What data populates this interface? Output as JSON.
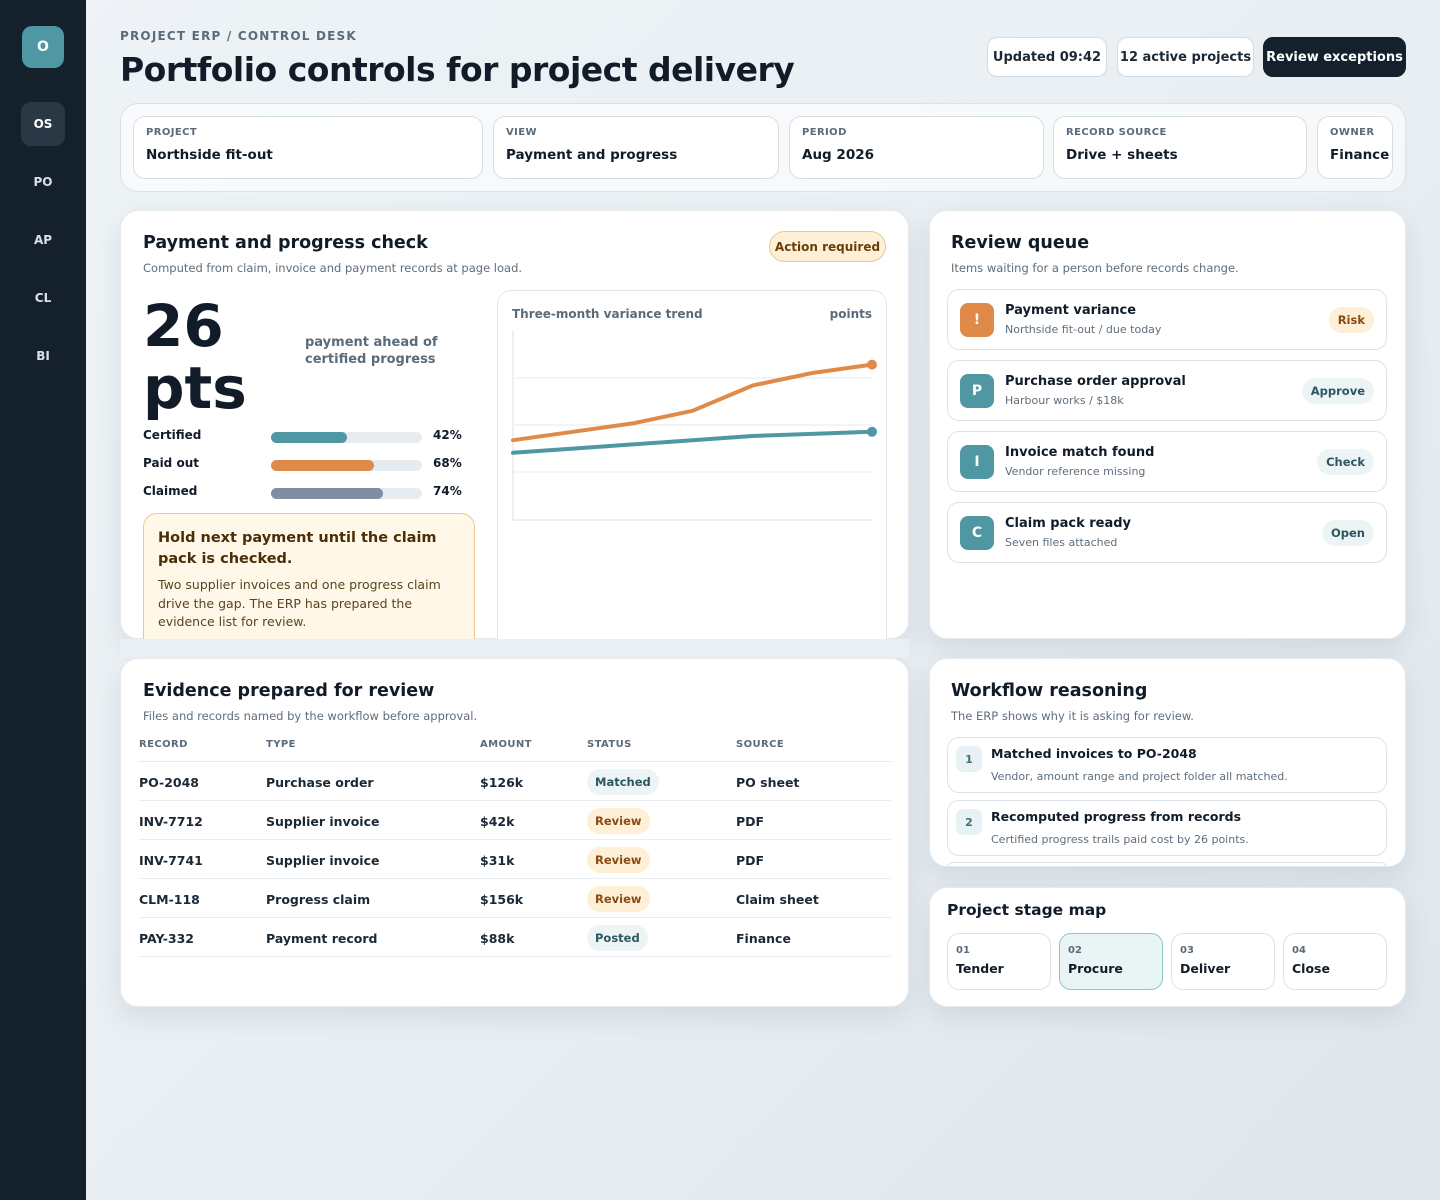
{
  "sidebar": {
    "logo": "O",
    "items": [
      {
        "label": "OS"
      },
      {
        "label": "PO"
      },
      {
        "label": "AP"
      },
      {
        "label": "CL"
      },
      {
        "label": "BI"
      }
    ]
  },
  "header": {
    "eyebrow": "PROJECT ERP / CONTROL DESK",
    "title": "Portfolio controls for project delivery",
    "updated": "Updated 09:42",
    "active_projects": "12 active projects",
    "review_button": "Review exceptions"
  },
  "filters": [
    {
      "label": "PROJECT",
      "value": "Northside fit-out"
    },
    {
      "label": "VIEW",
      "value": "Payment and progress"
    },
    {
      "label": "PERIOD",
      "value": "Aug 2026"
    },
    {
      "label": "RECORD SOURCE",
      "value": "Drive + sheets"
    },
    {
      "label": "OWNER",
      "value": "Finance"
    }
  ],
  "payment_check": {
    "title": "Payment and progress check",
    "subtitle": "Computed from claim, invoice and payment records at page load.",
    "badge": "Action required",
    "metric_value": "26",
    "metric_unit": "pts",
    "metric_caption": "payment ahead of certified progress",
    "bars": [
      {
        "label": "Certified",
        "value": 42,
        "display": "42%",
        "color": "#4f97a3"
      },
      {
        "label": "Paid out",
        "value": 68,
        "display": "68%",
        "color": "#e08a49"
      },
      {
        "label": "Claimed",
        "value": 74,
        "display": "74%",
        "color": "#7f8ea2"
      }
    ],
    "alert_title": "Hold next payment until the claim pack is checked.",
    "alert_body": "Two supplier invoices and one progress claim drive the gap. The ERP has prepared the evidence list for review."
  },
  "chart_data": {
    "type": "line",
    "title": "Three-month variance trend",
    "ylabel": "points",
    "grid": true,
    "series": [
      {
        "color": "#e08a49",
        "values": [
          19,
          21,
          23,
          26,
          32,
          35,
          37
        ]
      },
      {
        "color": "#4f97a3",
        "values": [
          16,
          17,
          18,
          19,
          20,
          20.5,
          21
        ]
      }
    ],
    "ylim": [
      0,
      45
    ]
  },
  "review_queue": {
    "title": "Review queue",
    "subtitle": "Items waiting for a person before records change.",
    "items": [
      {
        "icon": "!",
        "icon_color": "#e08a49",
        "title": "Payment variance",
        "sub": "Northside fit-out / due today",
        "badge": "Risk",
        "badge_bg": "#fdf0d6",
        "badge_color": "#8a4a12"
      },
      {
        "icon": "P",
        "icon_color": "#4f97a3",
        "title": "Purchase order approval",
        "sub": "Harbour works / $18k",
        "badge": "Approve",
        "badge_bg": "#edf4f5",
        "badge_color": "#2b5761"
      },
      {
        "icon": "I",
        "icon_color": "#4f97a3",
        "title": "Invoice match found",
        "sub": "Vendor reference missing",
        "badge": "Check",
        "badge_bg": "#edf4f5",
        "badge_color": "#2b5761"
      },
      {
        "icon": "C",
        "icon_color": "#4f97a3",
        "title": "Claim pack ready",
        "sub": "Seven files attached",
        "badge": "Open",
        "badge_bg": "#edf4f5",
        "badge_color": "#2b5761"
      }
    ]
  },
  "evidence": {
    "title": "Evidence prepared for review",
    "subtitle": "Files and records named by the workflow before approval.",
    "columns": [
      "RECORD",
      "TYPE",
      "AMOUNT",
      "STATUS",
      "SOURCE"
    ],
    "rows": [
      {
        "record": "PO-2048",
        "type": "Purchase order",
        "amount": "$126k",
        "status": "Matched",
        "source": "PO sheet"
      },
      {
        "record": "INV-7712",
        "type": "Supplier invoice",
        "amount": "$42k",
        "status": "Review",
        "source": "PDF"
      },
      {
        "record": "INV-7741",
        "type": "Supplier invoice",
        "amount": "$31k",
        "status": "Review",
        "source": "PDF"
      },
      {
        "record": "CLM-118",
        "type": "Progress claim",
        "amount": "$156k",
        "status": "Review",
        "source": "Claim sheet"
      },
      {
        "record": "PAY-332",
        "type": "Payment record",
        "amount": "$88k",
        "status": "Posted",
        "source": "Finance"
      }
    ]
  },
  "workflow": {
    "title": "Workflow reasoning",
    "subtitle": "The ERP shows why it is asking for review.",
    "steps": [
      {
        "num": "1",
        "title": "Matched invoices to PO-2048",
        "sub": "Vendor, amount range and project folder all matched."
      },
      {
        "num": "2",
        "title": "Recomputed progress from records",
        "sub": "Certified progress trails paid cost by 26 points."
      }
    ]
  },
  "stage_map": {
    "title": "Project stage map",
    "stages": [
      {
        "num": "01",
        "name": "Tender"
      },
      {
        "num": "02",
        "name": "Procure"
      },
      {
        "num": "03",
        "name": "Deliver"
      },
      {
        "num": "04",
        "name": "Close"
      }
    ]
  }
}
